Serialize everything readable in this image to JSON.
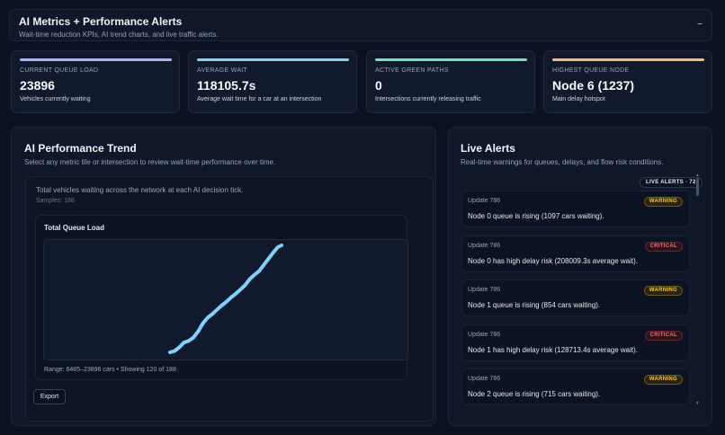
{
  "header": {
    "title": "AI Metrics + Performance Alerts",
    "subtitle": "Wait-time reduction KPIs, AI trend charts, and live traffic alerts.",
    "collapse_glyph": "−"
  },
  "kpis": [
    {
      "label": "CURRENT QUEUE LOAD",
      "value": "23896",
      "desc": "Vehicles currently waiting",
      "color": "#a5b4fc"
    },
    {
      "label": "AVERAGE WAIT",
      "value": "118105.7s",
      "desc": "Average wait time for a car at an intersection",
      "color": "#7dd3fc"
    },
    {
      "label": "ACTIVE GREEN PATHS",
      "value": "0",
      "desc": "Intersections currently releasing traffic",
      "color": "#6ee7b7"
    },
    {
      "label": "HIGHEST QUEUE NODE",
      "value": "Node 6 (1237)",
      "desc": "Main delay hotspot",
      "color": "#fdba74"
    }
  ],
  "trend": {
    "title": "AI Performance Trend",
    "subtitle": "Select any metric tile or intersection to review wait-time performance over time.",
    "caption": "Total vehicles waiting across the network at each AI decision tick.",
    "samples": "Samples: 188",
    "chart_title": "Total Queue Load",
    "range_text": "Range: 6485–23896 cars • Showing 120 of 188",
    "export_label": "Export"
  },
  "chart_data": {
    "type": "line",
    "title": "Total Queue Load",
    "xlabel": "",
    "ylabel": "",
    "ylim": [
      6485,
      23896
    ],
    "line_color": "#7dd3fc",
    "grid": false,
    "x": [
      0,
      5,
      10,
      15,
      20,
      25,
      30,
      35,
      40,
      45,
      50,
      55,
      60,
      65,
      70,
      75,
      80,
      85,
      90,
      95,
      100,
      105,
      110,
      115,
      119
    ],
    "series": [
      {
        "values": [
          6485,
          6700,
          7300,
          8100,
          8350,
          8900,
          9900,
          11200,
          12100,
          12700,
          13400,
          14100,
          14700,
          15400,
          16000,
          16700,
          17400,
          18400,
          19100,
          19700,
          20700,
          21700,
          22700,
          23600,
          23896
        ]
      }
    ]
  },
  "alerts": {
    "title": "Live Alerts",
    "subtitle": "Real-time warnings for queues, delays, and flow risk conditions.",
    "count_badge": "LIVE ALERTS · 72",
    "items": [
      {
        "update": "Update 786",
        "severity": "WARNING",
        "level": "warning",
        "message": "Node 0 queue is rising (1097 cars waiting)."
      },
      {
        "update": "Update 786",
        "severity": "CRITICAL",
        "level": "critical",
        "message": "Node 0 has high delay risk (208009.3s average wait)."
      },
      {
        "update": "Update 786",
        "severity": "WARNING",
        "level": "warning",
        "message": "Node 1 queue is rising (854 cars waiting)."
      },
      {
        "update": "Update 786",
        "severity": "CRITICAL",
        "level": "critical",
        "message": "Node 1 has high delay risk (128713.4s average wait)."
      },
      {
        "update": "Update 786",
        "severity": "WARNING",
        "level": "warning",
        "message": "Node 2 queue is rising (715 cars waiting)."
      }
    ]
  }
}
